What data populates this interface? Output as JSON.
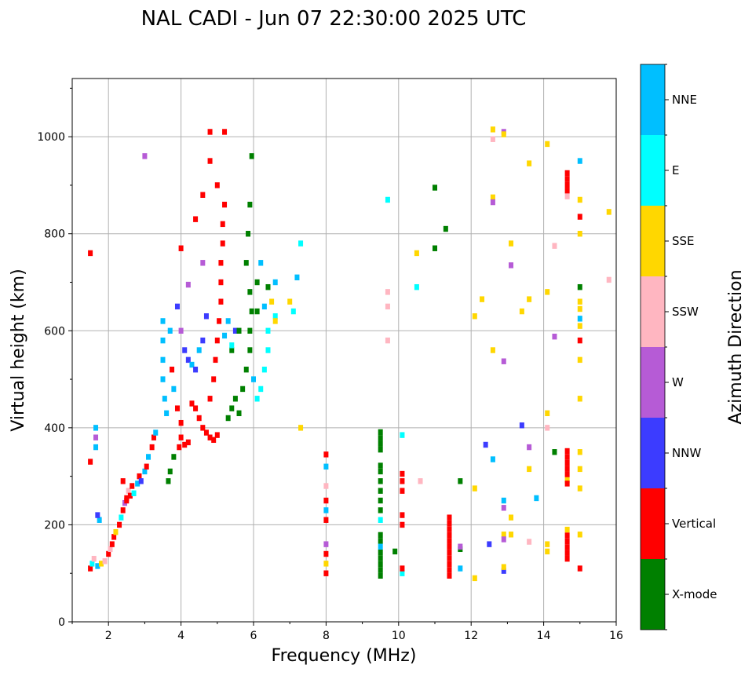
{
  "chart_data": {
    "type": "scatter",
    "title": "NAL CADI - Jun 07 22:30:00 2025 UTC",
    "xlabel": "Frequency (MHz)",
    "ylabel": "Virtual height (km)",
    "xlim": [
      1,
      16
    ],
    "ylim": [
      0,
      1120
    ],
    "xticks": [
      2,
      4,
      6,
      8,
      10,
      12,
      14,
      16
    ],
    "yticks": [
      0,
      200,
      400,
      600,
      800,
      1000
    ],
    "grid": true,
    "colorbar": {
      "label": "Azimuth Direction",
      "categories": [
        "X-mode",
        "Vertical",
        "NNW",
        "W",
        "SSW",
        "SSE",
        "E",
        "NNE"
      ],
      "colors": [
        "#008000",
        "#ff0000",
        "#3c3cff",
        "#b65bd6",
        "#ffb6c1",
        "#ffd700",
        "#00ffff",
        "#00bfff"
      ]
    },
    "points_format": [
      "frequency_mhz",
      "virtual_height_km",
      "direction_index"
    ],
    "points": [
      [
        1.5,
        110,
        1
      ],
      [
        1.55,
        120,
        6
      ],
      [
        1.6,
        130,
        4
      ],
      [
        1.7,
        115,
        7
      ],
      [
        1.8,
        120,
        5
      ],
      [
        1.9,
        125,
        4
      ],
      [
        2.0,
        140,
        1
      ],
      [
        2.05,
        150,
        4
      ],
      [
        2.1,
        160,
        1
      ],
      [
        2.15,
        175,
        1
      ],
      [
        2.2,
        185,
        5
      ],
      [
        2.3,
        200,
        1
      ],
      [
        2.35,
        215,
        6
      ],
      [
        2.4,
        230,
        1
      ],
      [
        2.45,
        245,
        3
      ],
      [
        2.5,
        255,
        1
      ],
      [
        2.55,
        270,
        4
      ],
      [
        2.6,
        260,
        1
      ],
      [
        2.65,
        280,
        1
      ],
      [
        2.7,
        265,
        6
      ],
      [
        2.8,
        285,
        7
      ],
      [
        2.85,
        300,
        1
      ],
      [
        2.9,
        290,
        2
      ],
      [
        3.0,
        310,
        7
      ],
      [
        3.05,
        320,
        1
      ],
      [
        3.1,
        340,
        7
      ],
      [
        3.2,
        360,
        1
      ],
      [
        3.25,
        380,
        1
      ],
      [
        3.3,
        390,
        7
      ],
      [
        1.75,
        210,
        7
      ],
      [
        1.7,
        220,
        2
      ],
      [
        1.5,
        330,
        1
      ],
      [
        1.5,
        760,
        1
      ],
      [
        1.65,
        400,
        7
      ],
      [
        1.65,
        380,
        3
      ],
      [
        1.65,
        360,
        7
      ],
      [
        2.4,
        290,
        1
      ],
      [
        2.5,
        250,
        1
      ],
      [
        3.5,
        620,
        7
      ],
      [
        3.5,
        580,
        7
      ],
      [
        3.5,
        540,
        7
      ],
      [
        3.5,
        500,
        7
      ],
      [
        3.55,
        460,
        7
      ],
      [
        3.6,
        430,
        7
      ],
      [
        3.7,
        600,
        7
      ],
      [
        3.75,
        520,
        1
      ],
      [
        3.8,
        480,
        7
      ],
      [
        3.9,
        440,
        1
      ],
      [
        4.0,
        410,
        1
      ],
      [
        4.0,
        380,
        1
      ],
      [
        4.1,
        365,
        1
      ],
      [
        4.2,
        370,
        1
      ],
      [
        3.95,
        360,
        1
      ],
      [
        3.8,
        340,
        0
      ],
      [
        3.7,
        310,
        0
      ],
      [
        3.65,
        290,
        0
      ],
      [
        4.0,
        600,
        3
      ],
      [
        4.1,
        560,
        2
      ],
      [
        4.2,
        540,
        2
      ],
      [
        4.3,
        530,
        7
      ],
      [
        4.4,
        520,
        2
      ],
      [
        4.5,
        560,
        7
      ],
      [
        4.6,
        580,
        2
      ],
      [
        4.7,
        630,
        2
      ],
      [
        4.3,
        450,
        1
      ],
      [
        4.4,
        440,
        1
      ],
      [
        4.5,
        420,
        1
      ],
      [
        4.6,
        400,
        1
      ],
      [
        4.7,
        390,
        1
      ],
      [
        4.8,
        380,
        1
      ],
      [
        4.9,
        375,
        1
      ],
      [
        5.0,
        385,
        1
      ],
      [
        4.8,
        460,
        1
      ],
      [
        4.9,
        500,
        1
      ],
      [
        4.95,
        540,
        1
      ],
      [
        5.0,
        580,
        1
      ],
      [
        5.05,
        620,
        1
      ],
      [
        5.1,
        660,
        1
      ],
      [
        5.1,
        700,
        1
      ],
      [
        5.1,
        740,
        1
      ],
      [
        5.15,
        780,
        1
      ],
      [
        5.15,
        820,
        1
      ],
      [
        5.2,
        860,
        1
      ],
      [
        5.0,
        900,
        1
      ],
      [
        4.8,
        1010,
        1
      ],
      [
        5.2,
        1010,
        1
      ],
      [
        4.4,
        830,
        1
      ],
      [
        4.6,
        880,
        1
      ],
      [
        4.8,
        950,
        1
      ],
      [
        5.3,
        620,
        7
      ],
      [
        5.2,
        590,
        7
      ],
      [
        5.5,
        600,
        2
      ],
      [
        5.3,
        420,
        0
      ],
      [
        5.4,
        440,
        0
      ],
      [
        5.5,
        460,
        0
      ],
      [
        5.6,
        430,
        0
      ],
      [
        5.7,
        480,
        0
      ],
      [
        5.8,
        520,
        0
      ],
      [
        5.9,
        560,
        0
      ],
      [
        5.9,
        600,
        0
      ],
      [
        5.95,
        640,
        0
      ],
      [
        5.9,
        680,
        0
      ],
      [
        5.8,
        740,
        0
      ],
      [
        5.85,
        800,
        0
      ],
      [
        5.9,
        860,
        0
      ],
      [
        5.95,
        960,
        0
      ],
      [
        5.4,
        560,
        0
      ],
      [
        5.6,
        600,
        0
      ],
      [
        6.1,
        640,
        0
      ],
      [
        6.1,
        700,
        0
      ],
      [
        6.0,
        500,
        7
      ],
      [
        6.1,
        460,
        6
      ],
      [
        6.2,
        480,
        6
      ],
      [
        6.3,
        520,
        6
      ],
      [
        6.4,
        560,
        6
      ],
      [
        6.4,
        600,
        6
      ],
      [
        6.3,
        650,
        7
      ],
      [
        6.4,
        690,
        0
      ],
      [
        6.5,
        660,
        5
      ],
      [
        6.6,
        630,
        6
      ],
      [
        6.6,
        700,
        7
      ],
      [
        6.2,
        740,
        7
      ],
      [
        6.6,
        620,
        5
      ],
      [
        7.0,
        660,
        5
      ],
      [
        7.1,
        640,
        6
      ],
      [
        7.2,
        710,
        7
      ],
      [
        7.3,
        780,
        6
      ],
      [
        7.3,
        400,
        5
      ],
      [
        3.0,
        960,
        3
      ],
      [
        4.0,
        770,
        1
      ],
      [
        4.6,
        740,
        3
      ],
      [
        3.9,
        650,
        2
      ],
      [
        4.2,
        695,
        3
      ],
      [
        5.4,
        570,
        6
      ],
      [
        8,
        100,
        1
      ],
      [
        8,
        120,
        5
      ],
      [
        8,
        140,
        1
      ],
      [
        8,
        160,
        3
      ],
      [
        8,
        210,
        1
      ],
      [
        8,
        230,
        7
      ],
      [
        8,
        250,
        1
      ],
      [
        8,
        280,
        4
      ],
      [
        8,
        320,
        7
      ],
      [
        8,
        345,
        1
      ],
      [
        9.5,
        95,
        0
      ],
      [
        9.5,
        107,
        0
      ],
      [
        9.5,
        119,
        0
      ],
      [
        9.5,
        131,
        0
      ],
      [
        9.5,
        143,
        0
      ],
      [
        9.5,
        155,
        7
      ],
      [
        9.5,
        167,
        0
      ],
      [
        9.5,
        179,
        0
      ],
      [
        9.5,
        210,
        6
      ],
      [
        9.5,
        230,
        0
      ],
      [
        9.5,
        250,
        0
      ],
      [
        9.5,
        270,
        0
      ],
      [
        9.5,
        290,
        0
      ],
      [
        9.5,
        310,
        0
      ],
      [
        9.5,
        322,
        0
      ],
      [
        9.5,
        355,
        0
      ],
      [
        9.5,
        367,
        0
      ],
      [
        9.5,
        379,
        0
      ],
      [
        9.5,
        391,
        0
      ],
      [
        10.1,
        100,
        6
      ],
      [
        10.1,
        110,
        1
      ],
      [
        10.1,
        200,
        1
      ],
      [
        10.1,
        220,
        1
      ],
      [
        10.1,
        270,
        1
      ],
      [
        10.1,
        290,
        1
      ],
      [
        10.1,
        305,
        1
      ],
      [
        10.1,
        385,
        6
      ],
      [
        10.6,
        290,
        4
      ],
      [
        9.9,
        145,
        0
      ],
      [
        9.7,
        870,
        6
      ],
      [
        9.7,
        680,
        4
      ],
      [
        9.7,
        650,
        4
      ],
      [
        9.7,
        580,
        4
      ],
      [
        10.5,
        760,
        5
      ],
      [
        10.5,
        690,
        6
      ],
      [
        11,
        770,
        0
      ],
      [
        11,
        895,
        0
      ],
      [
        11.3,
        810,
        0
      ],
      [
        11.4,
        95,
        1
      ],
      [
        11.4,
        107,
        1
      ],
      [
        11.4,
        119,
        1
      ],
      [
        11.4,
        131,
        1
      ],
      [
        11.4,
        143,
        1
      ],
      [
        11.4,
        155,
        1
      ],
      [
        11.4,
        167,
        1
      ],
      [
        11.4,
        179,
        1
      ],
      [
        11.4,
        191,
        1
      ],
      [
        11.4,
        203,
        1
      ],
      [
        11.4,
        215,
        1
      ],
      [
        11.7,
        150,
        0
      ],
      [
        11.7,
        290,
        0
      ],
      [
        11.7,
        110,
        7
      ],
      [
        11.7,
        155,
        3
      ],
      [
        12.1,
        90,
        5
      ],
      [
        12.1,
        275,
        5
      ],
      [
        12.1,
        630,
        5
      ],
      [
        12.3,
        665,
        5
      ],
      [
        12.4,
        365,
        2
      ],
      [
        12.5,
        160,
        2
      ],
      [
        12.6,
        335,
        7
      ],
      [
        12.6,
        560,
        5
      ],
      [
        12.6,
        875,
        5
      ],
      [
        12.6,
        865,
        3
      ],
      [
        12.6,
        1015,
        5
      ],
      [
        12.6,
        995,
        4
      ],
      [
        12.9,
        1010,
        3
      ],
      [
        12.9,
        1005,
        5
      ],
      [
        12.9,
        105,
        2
      ],
      [
        12.9,
        113,
        5
      ],
      [
        12.9,
        180,
        5
      ],
      [
        12.9,
        170,
        3
      ],
      [
        12.9,
        235,
        3
      ],
      [
        12.9,
        250,
        7
      ],
      [
        12.9,
        537,
        3
      ],
      [
        13.1,
        215,
        5
      ],
      [
        13.1,
        735,
        3
      ],
      [
        13.1,
        780,
        5
      ],
      [
        13.1,
        180,
        5
      ],
      [
        13.4,
        640,
        5
      ],
      [
        13.4,
        405,
        2
      ],
      [
        13.6,
        945,
        5
      ],
      [
        13.6,
        665,
        5
      ],
      [
        13.6,
        360,
        3
      ],
      [
        13.6,
        315,
        5
      ],
      [
        13.6,
        165,
        4
      ],
      [
        13.8,
        255,
        7
      ],
      [
        14.1,
        985,
        5
      ],
      [
        14.1,
        680,
        5
      ],
      [
        14.1,
        430,
        5
      ],
      [
        14.1,
        400,
        4
      ],
      [
        14.1,
        160,
        5
      ],
      [
        14.1,
        145,
        5
      ],
      [
        14.3,
        775,
        4
      ],
      [
        14.3,
        588,
        3
      ],
      [
        14.3,
        350,
        0
      ],
      [
        14.65,
        925,
        1
      ],
      [
        14.65,
        913,
        1
      ],
      [
        14.65,
        901,
        1
      ],
      [
        14.65,
        889,
        1
      ],
      [
        14.65,
        877,
        4
      ],
      [
        14.65,
        352,
        1
      ],
      [
        14.65,
        340,
        1
      ],
      [
        14.65,
        328,
        1
      ],
      [
        14.65,
        316,
        1
      ],
      [
        14.65,
        304,
        1
      ],
      [
        14.65,
        292,
        5
      ],
      [
        14.65,
        285,
        1
      ],
      [
        14.65,
        190,
        5
      ],
      [
        14.65,
        178,
        1
      ],
      [
        14.65,
        166,
        1
      ],
      [
        14.65,
        154,
        1
      ],
      [
        14.65,
        142,
        1
      ],
      [
        14.65,
        130,
        1
      ],
      [
        15,
        950,
        7
      ],
      [
        15,
        870,
        5
      ],
      [
        15,
        835,
        1
      ],
      [
        15,
        800,
        5
      ],
      [
        15,
        690,
        0
      ],
      [
        15,
        660,
        5
      ],
      [
        15,
        645,
        5
      ],
      [
        15,
        625,
        7
      ],
      [
        15,
        610,
        5
      ],
      [
        15,
        580,
        1
      ],
      [
        15,
        540,
        5
      ],
      [
        15,
        460,
        5
      ],
      [
        15,
        350,
        5
      ],
      [
        15,
        315,
        5
      ],
      [
        15,
        275,
        5
      ],
      [
        15,
        180,
        5
      ],
      [
        15,
        110,
        1
      ],
      [
        15.8,
        845,
        5
      ],
      [
        15.8,
        705,
        4
      ]
    ]
  }
}
